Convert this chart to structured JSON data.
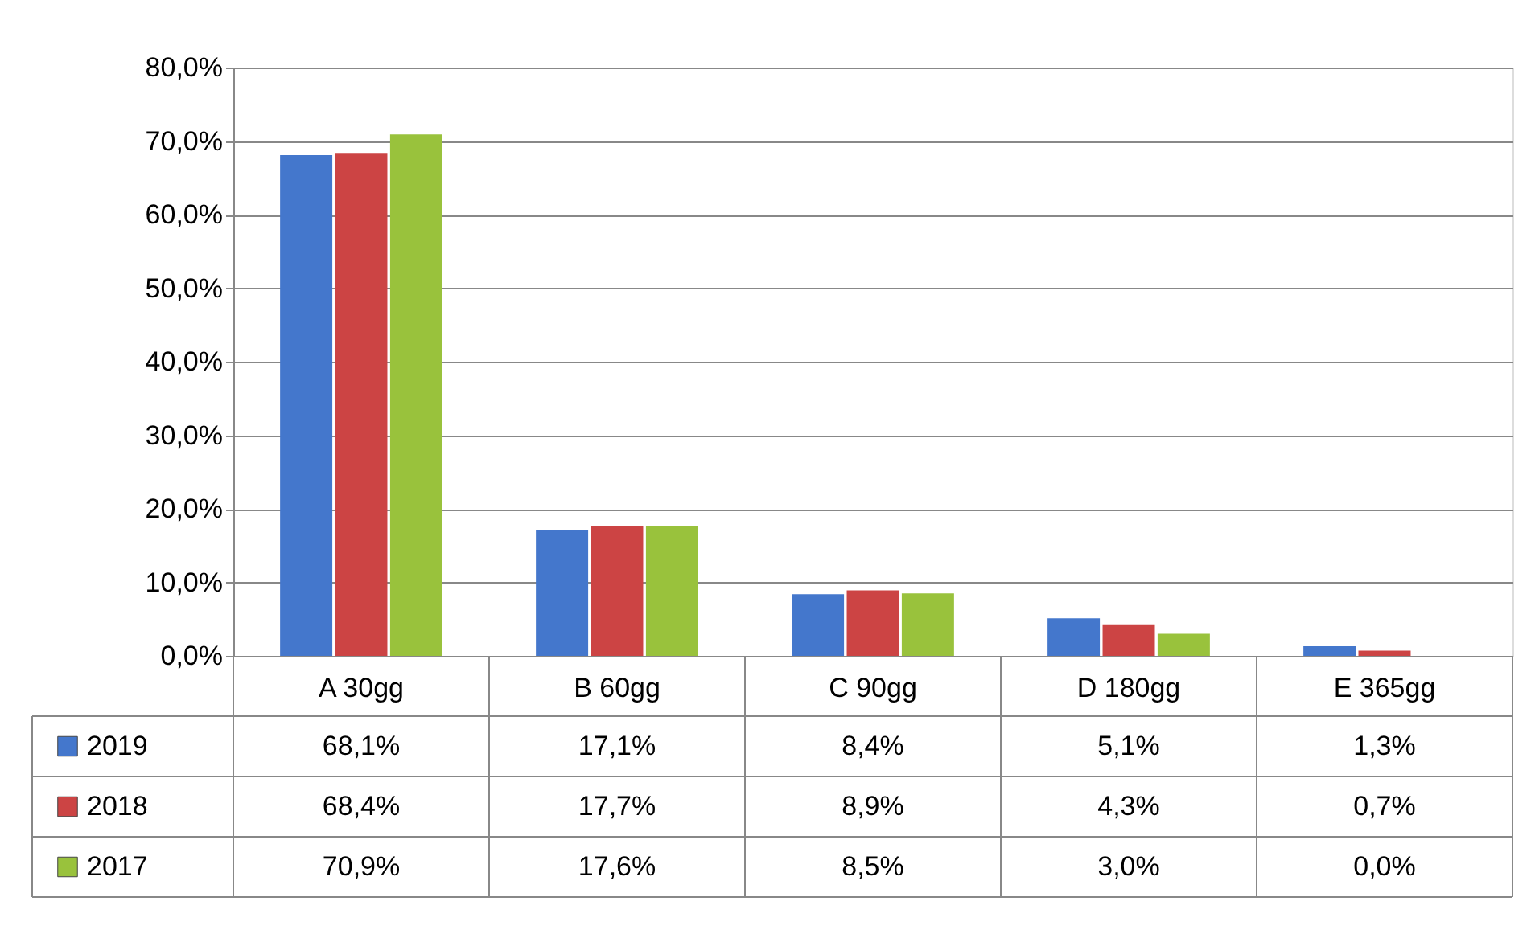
{
  "chart_data": {
    "type": "bar",
    "categories": [
      "A 30gg",
      "B 60gg",
      "C 90gg",
      "D 180gg",
      "E 365gg"
    ],
    "series": [
      {
        "name": "2019",
        "color": "#4477cc",
        "values": [
          68.1,
          17.1,
          8.4,
          5.1,
          1.3
        ],
        "value_labels": [
          "68,1%",
          "17,1%",
          "8,4%",
          "5,1%",
          "1,3%"
        ]
      },
      {
        "name": "2018",
        "color": "#cc4444",
        "values": [
          68.4,
          17.7,
          8.9,
          4.3,
          0.7
        ],
        "value_labels": [
          "68,4%",
          "17,7%",
          "8,9%",
          "4,3%",
          "0,7%"
        ]
      },
      {
        "name": "2017",
        "color": "#99c23c",
        "values": [
          70.9,
          17.6,
          8.5,
          3.0,
          0.0
        ],
        "value_labels": [
          "70,9%",
          "17,6%",
          "8,5%",
          "3,0%",
          "0,0%"
        ]
      }
    ],
    "ylim": [
      0,
      80
    ],
    "yticks": [
      {
        "value": 0,
        "label": "0,0%"
      },
      {
        "value": 10,
        "label": "10,0%"
      },
      {
        "value": 20,
        "label": "20,0%"
      },
      {
        "value": 30,
        "label": "30,0%"
      },
      {
        "value": 40,
        "label": "40,0%"
      },
      {
        "value": 50,
        "label": "50,0%"
      },
      {
        "value": 60,
        "label": "60,0%"
      },
      {
        "value": 70,
        "label": "70,0%"
      },
      {
        "value": 80,
        "label": "80,0%"
      }
    ],
    "grid": "y",
    "legend": "bottom left"
  }
}
